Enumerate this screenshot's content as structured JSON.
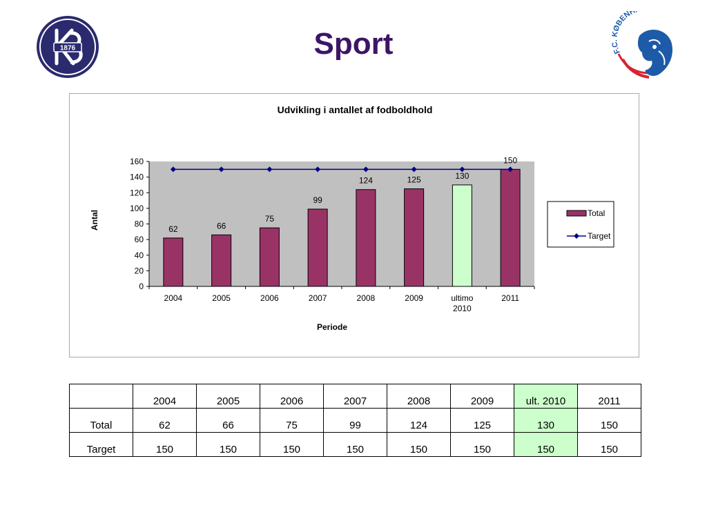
{
  "page": {
    "title": "Sport"
  },
  "logos": {
    "left": {
      "icon": "kb-club-crest-icon",
      "text": "1876",
      "color": "#2b2a6e"
    },
    "right": {
      "icon": "fc-kobenhavn-lion-icon",
      "text": "F.C. KØBENHAVN",
      "color": "#1d5ba8",
      "accent": "#d9232e"
    }
  },
  "chart_data": {
    "type": "bar",
    "title": "Udvikling i antallet af fodboldhold",
    "xlabel": "Periode",
    "ylabel": "Antal",
    "categories": [
      "2004",
      "2005",
      "2006",
      "2007",
      "2008",
      "2009",
      "ultimo 2010",
      "2011"
    ],
    "ylim": [
      0,
      160
    ],
    "yticks": [
      0,
      20,
      40,
      60,
      80,
      100,
      120,
      140,
      160
    ],
    "grid": false,
    "legend": "right",
    "plot_background": "#c0c0c0",
    "series": [
      {
        "name": "Total",
        "kind": "bar",
        "values": [
          62,
          66,
          75,
          99,
          124,
          125,
          130,
          150
        ],
        "color": "#993366",
        "highlight_index": 6,
        "highlight_color": "#ccffcc",
        "data_labels": [
          "62",
          "66",
          "75",
          "99",
          "124",
          "125",
          "130",
          "150"
        ]
      },
      {
        "name": "Target",
        "kind": "line",
        "values": [
          150,
          150,
          150,
          150,
          150,
          150,
          150,
          150
        ],
        "color": "#000080",
        "marker": "diamond"
      }
    ]
  },
  "table": {
    "header": [
      "",
      "2004",
      "2005",
      "2006",
      "2007",
      "2008",
      "2009",
      "ult. 2010",
      "2011"
    ],
    "rows": [
      {
        "label": "Total",
        "values": [
          "62",
          "66",
          "75",
          "99",
          "124",
          "125",
          "130",
          "150"
        ]
      },
      {
        "label": "Target",
        "values": [
          "150",
          "150",
          "150",
          "150",
          "150",
          "150",
          "150",
          "150"
        ]
      }
    ],
    "highlight_column": 7,
    "highlight_color": "#ccffcc"
  }
}
